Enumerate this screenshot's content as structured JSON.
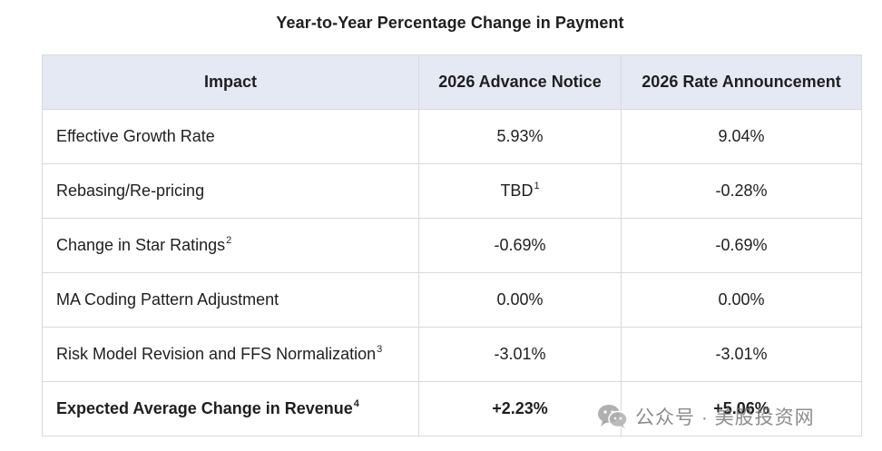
{
  "title": "Year-to-Year Percentage Change in Payment",
  "table": {
    "headers": [
      "Impact",
      "2026 Advance Notice",
      "2026 Rate Announcement"
    ],
    "rows": [
      {
        "impact": "Effective Growth Rate",
        "impact_sup": "",
        "advance": "5.93%",
        "advance_sup": "",
        "announcement": "9.04%"
      },
      {
        "impact": "Rebasing/Re-pricing",
        "impact_sup": "",
        "advance": "TBD",
        "advance_sup": "1",
        "announcement": "-0.28%"
      },
      {
        "impact": "Change in Star Ratings",
        "impact_sup": "2",
        "advance": "-0.69%",
        "advance_sup": "",
        "announcement": "-0.69%"
      },
      {
        "impact": "MA Coding Pattern Adjustment",
        "impact_sup": "",
        "advance": "0.00%",
        "advance_sup": "",
        "announcement": "0.00%"
      },
      {
        "impact": "Risk Model Revision and FFS Normalization",
        "impact_sup": "3",
        "advance": "-3.01%",
        "advance_sup": "",
        "announcement": "-3.01%"
      },
      {
        "impact": "Expected Average Change in Revenue",
        "impact_sup": "4",
        "advance": "+2.23%",
        "advance_sup": "",
        "announcement": "+5.06%"
      }
    ]
  },
  "watermark": {
    "text": "公众号 · 美股投资网",
    "icon": "wechat-icon"
  }
}
